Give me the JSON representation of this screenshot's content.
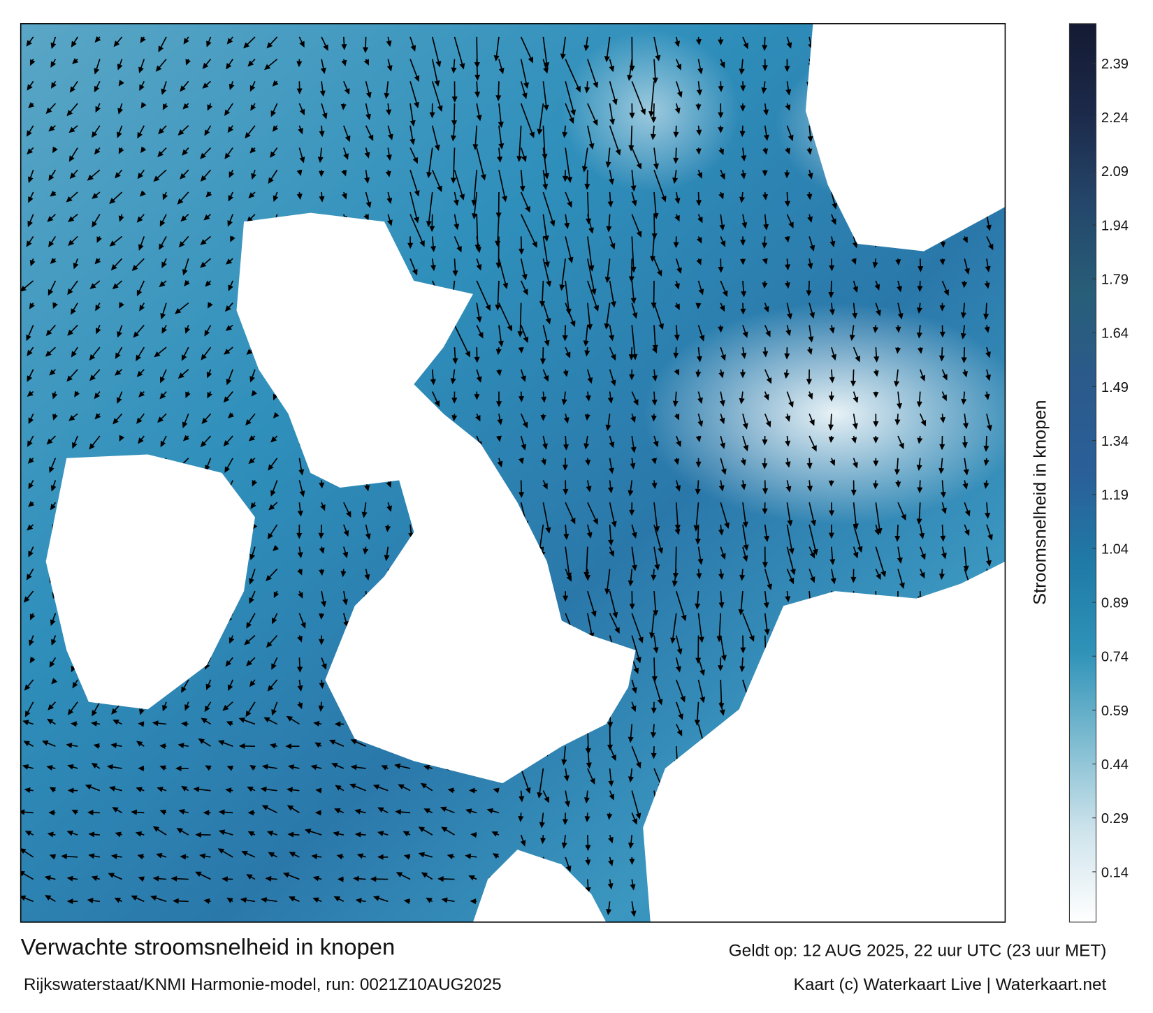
{
  "map": {
    "title": "Verwachte stroomsnelheid in knopen",
    "subtitle": "Rijkswaterstaat/KNMI Harmonie-model, run: 0021Z10AUG2025",
    "valid_time": "Geldt op: 12 AUG 2025, 22 uur UTC (23 uur MET)",
    "credit": "Kaart (c) Waterkaart Live | Waterkaart.net",
    "colorbar": {
      "label": "Stroomsnelheid in knopen",
      "lim": [
        0,
        2.5
      ],
      "ticks": [
        0.14,
        0.29,
        0.44,
        0.59,
        0.74,
        0.89,
        1.04,
        1.19,
        1.34,
        1.49,
        1.64,
        1.79,
        1.94,
        2.09,
        2.24,
        2.39
      ],
      "colors": [
        "#ffffff",
        "#cfe4ec",
        "#7fbcd1",
        "#2f93b8",
        "#1f7aa6",
        "#2a5f98",
        "#2b5a8c",
        "#285e78",
        "#24466a",
        "#1c2a4a",
        "#141a33"
      ]
    }
  }
}
